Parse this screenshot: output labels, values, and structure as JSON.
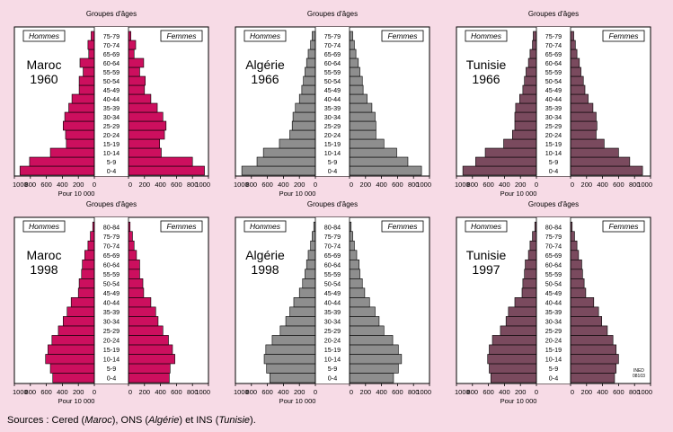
{
  "colors": {
    "background": "#f7dbe6",
    "maroc": "#cc0f5e",
    "algerie": "#8e8e8e",
    "tunisie": "#7a4a5e"
  },
  "labels": {
    "groups": "Groupes d'âges",
    "hommes": "Hommes",
    "femmes": "Femmes",
    "unit": "Pour 10 000",
    "x_ticks": [
      "1000",
      "800",
      "600",
      "400",
      "200",
      "0",
      "200",
      "400",
      "600",
      "800",
      "1000"
    ]
  },
  "source": {
    "prefix": "Sources : Cered (",
    "maroc": "Maroc",
    "mid1": "), ONS (",
    "algerie": "Algérie",
    "mid2": ") et INS (",
    "tunisie": "Tunisie",
    "suffix": ")."
  },
  "credit": {
    "line1": "INED",
    "line2": "08103"
  },
  "chart_data": [
    {
      "type": "bar",
      "country": "Maroc",
      "year": "1960",
      "color_key": "maroc",
      "xlim": [
        -1000,
        1000
      ],
      "age_groups": [
        "0-4",
        "5-9",
        "10-14",
        "15-19",
        "20-24",
        "25-29",
        "30-34",
        "35-39",
        "40-44",
        "45-49",
        "50-54",
        "55-59",
        "60-64",
        "65-69",
        "70-74",
        "75-79"
      ],
      "series": [
        {
          "name": "Hommes",
          "values": [
            930,
            810,
            550,
            350,
            360,
            390,
            370,
            320,
            280,
            190,
            190,
            140,
            180,
            70,
            80,
            40
          ]
        },
        {
          "name": "Femmes",
          "values": [
            950,
            800,
            410,
            390,
            450,
            470,
            430,
            360,
            280,
            200,
            210,
            140,
            190,
            70,
            90,
            30
          ]
        }
      ]
    },
    {
      "type": "bar",
      "country": "Algérie",
      "year": "1966",
      "color_key": "algerie",
      "xlim": [
        -1000,
        1000
      ],
      "age_groups": [
        "0-4",
        "5-9",
        "10-14",
        "15-19",
        "20-24",
        "25-29",
        "30-34",
        "35-39",
        "40-44",
        "45-49",
        "50-54",
        "55-59",
        "60-64",
        "65-69",
        "70-74",
        "75-79"
      ],
      "series": [
        {
          "name": "Hommes",
          "values": [
            920,
            730,
            650,
            450,
            320,
            290,
            280,
            250,
            200,
            170,
            150,
            130,
            110,
            90,
            60,
            40
          ]
        },
        {
          "name": "Femmes",
          "values": [
            900,
            730,
            590,
            430,
            330,
            330,
            320,
            280,
            220,
            170,
            160,
            130,
            110,
            80,
            60,
            40
          ]
        }
      ]
    },
    {
      "type": "bar",
      "country": "Tunisie",
      "year": "1966",
      "color_key": "tunisie",
      "xlim": [
        -1000,
        1000
      ],
      "age_groups": [
        "0-4",
        "5-9",
        "10-14",
        "15-19",
        "20-24",
        "25-29",
        "30-34",
        "35-39",
        "40-44",
        "45-49",
        "50-54",
        "55-59",
        "60-64",
        "65-69",
        "70-74",
        "75-79"
      ],
      "series": [
        {
          "name": "Hommes",
          "values": [
            920,
            760,
            640,
            410,
            300,
            270,
            270,
            260,
            210,
            170,
            150,
            130,
            100,
            80,
            50,
            40
          ]
        },
        {
          "name": "Femmes",
          "values": [
            900,
            740,
            600,
            420,
            320,
            330,
            320,
            280,
            220,
            180,
            160,
            130,
            110,
            80,
            60,
            40
          ]
        }
      ]
    },
    {
      "type": "bar",
      "country": "Maroc",
      "year": "1998",
      "color_key": "maroc",
      "xlim": [
        -1000,
        1000
      ],
      "age_groups": [
        "0-4",
        "5-9",
        "10-14",
        "15-19",
        "20-24",
        "25-29",
        "30-34",
        "35-39",
        "40-44",
        "45-49",
        "50-54",
        "55-59",
        "60-64",
        "65-69",
        "70-74",
        "75-79",
        "80-84"
      ],
      "series": [
        {
          "name": "Hommes",
          "values": [
            520,
            550,
            610,
            580,
            530,
            450,
            390,
            340,
            290,
            200,
            190,
            160,
            150,
            120,
            80,
            50,
            20
          ]
        },
        {
          "name": "Femmes",
          "values": [
            510,
            520,
            580,
            550,
            500,
            430,
            370,
            340,
            280,
            190,
            180,
            140,
            140,
            100,
            70,
            50,
            20
          ]
        }
      ]
    },
    {
      "type": "bar",
      "country": "Algérie",
      "year": "1998",
      "color_key": "algerie",
      "xlim": [
        -1000,
        1000
      ],
      "age_groups": [
        "0-4",
        "5-9",
        "10-14",
        "15-19",
        "20-24",
        "25-29",
        "30-34",
        "35-39",
        "40-44",
        "45-49",
        "50-54",
        "55-59",
        "60-64",
        "65-69",
        "70-74",
        "75-79",
        "80-84"
      ],
      "series": [
        {
          "name": "Hommes",
          "values": [
            570,
            610,
            640,
            620,
            540,
            440,
            370,
            320,
            270,
            200,
            160,
            130,
            110,
            90,
            60,
            40,
            20
          ]
        },
        {
          "name": "Femmes",
          "values": [
            550,
            610,
            650,
            610,
            540,
            430,
            370,
            320,
            250,
            190,
            160,
            130,
            120,
            90,
            60,
            40,
            20
          ]
        }
      ]
    },
    {
      "type": "bar",
      "country": "Tunisie",
      "year": "1997",
      "color_key": "tunisie",
      "xlim": [
        -1000,
        1000
      ],
      "age_groups": [
        "0-4",
        "5-9",
        "10-14",
        "15-19",
        "20-24",
        "25-29",
        "30-34",
        "35-39",
        "40-44",
        "45-49",
        "50-54",
        "55-59",
        "60-64",
        "65-69",
        "70-74",
        "75-79",
        "80-84"
      ],
      "series": [
        {
          "name": "Hommes",
          "values": [
            570,
            590,
            610,
            590,
            550,
            450,
            380,
            350,
            270,
            180,
            170,
            150,
            140,
            100,
            80,
            50,
            20
          ]
        },
        {
          "name": "Femmes",
          "values": [
            550,
            570,
            600,
            570,
            530,
            460,
            390,
            350,
            290,
            190,
            170,
            150,
            140,
            100,
            80,
            50,
            20
          ]
        }
      ]
    }
  ]
}
